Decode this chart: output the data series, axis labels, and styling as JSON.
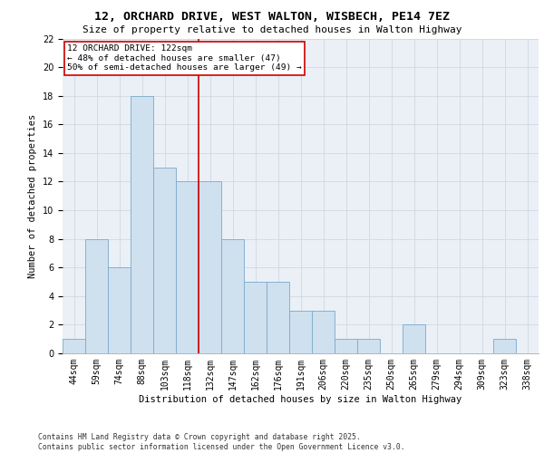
{
  "title_line1": "12, ORCHARD DRIVE, WEST WALTON, WISBECH, PE14 7EZ",
  "title_line2": "Size of property relative to detached houses in Walton Highway",
  "xlabel": "Distribution of detached houses by size in Walton Highway",
  "ylabel": "Number of detached properties",
  "footer": "Contains HM Land Registry data © Crown copyright and database right 2025.\nContains public sector information licensed under the Open Government Licence v3.0.",
  "bin_labels": [
    "44sqm",
    "59sqm",
    "74sqm",
    "88sqm",
    "103sqm",
    "118sqm",
    "132sqm",
    "147sqm",
    "162sqm",
    "176sqm",
    "191sqm",
    "206sqm",
    "220sqm",
    "235sqm",
    "250sqm",
    "265sqm",
    "279sqm",
    "294sqm",
    "309sqm",
    "323sqm",
    "338sqm"
  ],
  "bar_values": [
    1,
    8,
    6,
    18,
    13,
    12,
    12,
    8,
    5,
    5,
    3,
    3,
    1,
    1,
    0,
    2,
    0,
    0,
    0,
    1,
    0
  ],
  "bar_color": "#cfe0ef",
  "bar_edgecolor": "#7aaacb",
  "grid_color": "#d0d8e0",
  "vline_x_index": 5.5,
  "vline_color": "#cc0000",
  "annotation_text": "12 ORCHARD DRIVE: 122sqm\n← 48% of detached houses are smaller (47)\n50% of semi-detached houses are larger (49) →",
  "annotation_box_color": "#cc0000",
  "annotation_fontsize": 6.8,
  "ylim": [
    0,
    22
  ],
  "yticks": [
    0,
    2,
    4,
    6,
    8,
    10,
    12,
    14,
    16,
    18,
    20,
    22
  ],
  "background_color": "#eaf0f6",
  "title_fontsize": 9.5,
  "subtitle_fontsize": 8.0,
  "axis_label_fontsize": 7.5,
  "tick_fontsize": 7.0,
  "footer_fontsize": 5.8
}
